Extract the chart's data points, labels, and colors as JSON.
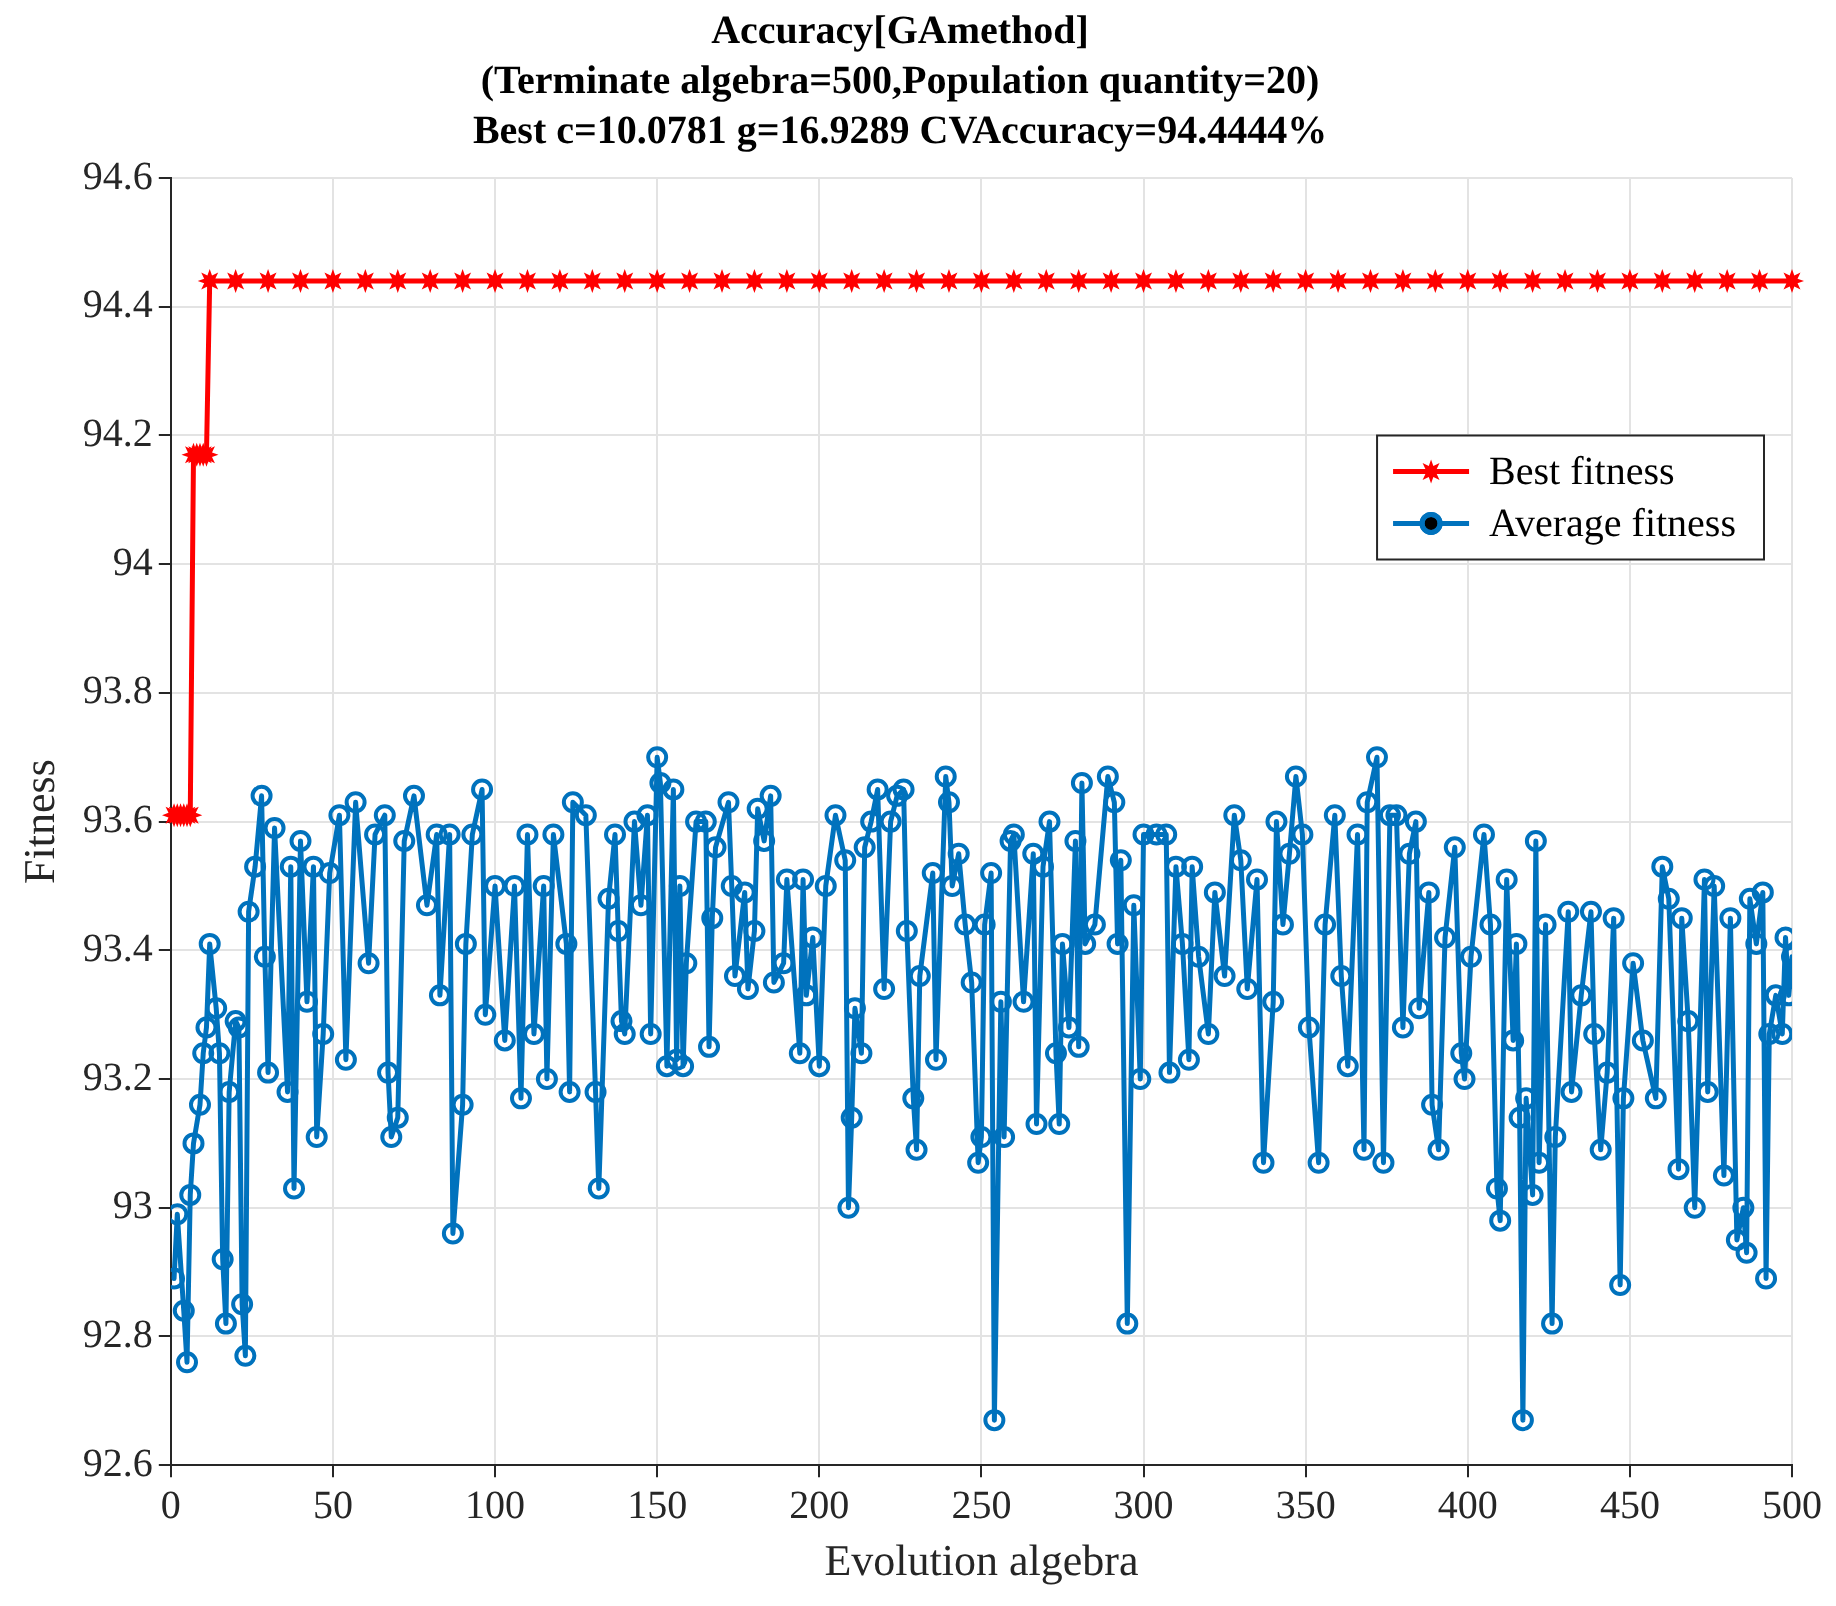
{
  "chart_data": {
    "type": "line",
    "title": "Accuracy[GAmethod]\n(Terminate algebra=500,Population quantity=20)\nBest c=10.0781 g=16.9289 CVAccuracy=94.4444%",
    "xlabel": "Evolution algebra",
    "ylabel": "Fitness",
    "xlim": [
      0,
      500
    ],
    "xticks": [
      0,
      50,
      100,
      150,
      200,
      250,
      300,
      350,
      400,
      450,
      500
    ],
    "ylim": [
      92.6,
      94.6
    ],
    "yticks": [
      92.6,
      92.8,
      93,
      93.2,
      93.4,
      93.6,
      93.8,
      94,
      94.2,
      94.4,
      94.6
    ],
    "grid": true,
    "legend": "top right",
    "line_style": "solid",
    "series": [
      {
        "name": "Best fitness",
        "color": "#ff0000",
        "marker": "star",
        "x": [
          1,
          2,
          3,
          4,
          5,
          6,
          7,
          8,
          9,
          10,
          11,
          12,
          20,
          30,
          40,
          50,
          60,
          70,
          80,
          90,
          100,
          110,
          120,
          130,
          140,
          150,
          160,
          170,
          180,
          190,
          200,
          210,
          220,
          230,
          240,
          250,
          260,
          270,
          280,
          290,
          300,
          310,
          320,
          330,
          340,
          350,
          360,
          370,
          380,
          390,
          400,
          410,
          420,
          430,
          440,
          450,
          460,
          470,
          480,
          490,
          500
        ],
        "values": [
          93.61,
          93.61,
          93.61,
          93.61,
          93.61,
          93.61,
          94.17,
          94.17,
          94.17,
          94.17,
          94.17,
          94.44,
          94.44,
          94.44,
          94.44,
          94.44,
          94.44,
          94.44,
          94.44,
          94.44,
          94.44,
          94.44,
          94.44,
          94.44,
          94.44,
          94.44,
          94.44,
          94.44,
          94.44,
          94.44,
          94.44,
          94.44,
          94.44,
          94.44,
          94.44,
          94.44,
          94.44,
          94.44,
          94.44,
          94.44,
          94.44,
          94.44,
          94.44,
          94.44,
          94.44,
          94.44,
          94.44,
          94.44,
          94.44,
          94.44,
          94.44,
          94.44,
          94.44,
          94.44,
          94.44,
          94.44,
          94.44,
          94.44,
          94.44,
          94.44,
          94.44
        ]
      },
      {
        "name": "Average fitness",
        "color": "#0072bd",
        "marker": "circle",
        "x": [
          1,
          2,
          4,
          5,
          6,
          7,
          9,
          10,
          11,
          12,
          14,
          15,
          16,
          17,
          18,
          20,
          21,
          22,
          23,
          24,
          26,
          28,
          29,
          30,
          32,
          36,
          37,
          38,
          40,
          42,
          44,
          45,
          47,
          49,
          52,
          54,
          57,
          61,
          63,
          66,
          67,
          68,
          70,
          72,
          75,
          79,
          82,
          83,
          86,
          87,
          90,
          91,
          93,
          96,
          97,
          100,
          103,
          106,
          108,
          110,
          112,
          115,
          116,
          118,
          122,
          123,
          124,
          128,
          131,
          132,
          135,
          137,
          138,
          139,
          140,
          143,
          145,
          147,
          148,
          150,
          151,
          153,
          155,
          156,
          157,
          158,
          159,
          162,
          165,
          166,
          167,
          168,
          172,
          173,
          174,
          177,
          178,
          180,
          181,
          183,
          185,
          186,
          189,
          190,
          194,
          195,
          196,
          198,
          200,
          202,
          205,
          208,
          209,
          210,
          211,
          213,
          214,
          216,
          218,
          220,
          222,
          224,
          226,
          227,
          229,
          230,
          231,
          235,
          236,
          239,
          240,
          241,
          243,
          245,
          247,
          249,
          250,
          251,
          253,
          254,
          256,
          257,
          259,
          260,
          263,
          266,
          267,
          269,
          271,
          273,
          274,
          275,
          277,
          279,
          280,
          281,
          282,
          285,
          289,
          291,
          292,
          293,
          295,
          297,
          299,
          300,
          304,
          307,
          308,
          310,
          312,
          314,
          315,
          317,
          320,
          322,
          325,
          328,
          330,
          332,
          335,
          337,
          340,
          341,
          343,
          345,
          347,
          349,
          351,
          354,
          356,
          359,
          361,
          363,
          366,
          368,
          369,
          372,
          374,
          376,
          378,
          380,
          382,
          384,
          385,
          388,
          389,
          391,
          393,
          396,
          398,
          399,
          401,
          405,
          407,
          409,
          410,
          412,
          414,
          415,
          416,
          417,
          418,
          420,
          421,
          422,
          424,
          426,
          427,
          431,
          432,
          435,
          438,
          439,
          441,
          443,
          445,
          447,
          448,
          451,
          454,
          458,
          460,
          462,
          465,
          466,
          468,
          470,
          473,
          474,
          476,
          479,
          481,
          483,
          485,
          486,
          487,
          489,
          491,
          492,
          493,
          495,
          497,
          498,
          499,
          500
        ],
        "values": [
          92.89,
          92.99,
          92.84,
          92.76,
          93.02,
          93.1,
          93.16,
          93.24,
          93.28,
          93.41,
          93.31,
          93.24,
          92.92,
          92.82,
          93.18,
          93.29,
          93.28,
          92.85,
          92.77,
          93.46,
          93.53,
          93.64,
          93.39,
          93.21,
          93.59,
          93.18,
          93.53,
          93.03,
          93.57,
          93.32,
          93.53,
          93.11,
          93.27,
          93.52,
          93.61,
          93.23,
          93.63,
          93.38,
          93.58,
          93.61,
          93.21,
          93.11,
          93.14,
          93.57,
          93.64,
          93.47,
          93.58,
          93.33,
          93.58,
          92.96,
          93.16,
          93.41,
          93.58,
          93.65,
          93.3,
          93.5,
          93.26,
          93.5,
          93.17,
          93.58,
          93.27,
          93.5,
          93.2,
          93.58,
          93.41,
          93.18,
          93.63,
          93.61,
          93.18,
          93.03,
          93.48,
          93.58,
          93.43,
          93.29,
          93.27,
          93.6,
          93.47,
          93.61,
          93.27,
          93.7,
          93.66,
          93.22,
          93.65,
          93.23,
          93.5,
          93.22,
          93.38,
          93.6,
          93.6,
          93.25,
          93.45,
          93.56,
          93.63,
          93.5,
          93.36,
          93.49,
          93.34,
          93.43,
          93.62,
          93.57,
          93.64,
          93.35,
          93.38,
          93.51,
          93.24,
          93.51,
          93.33,
          93.42,
          93.22,
          93.5,
          93.61,
          93.54,
          93.0,
          93.14,
          93.31,
          93.24,
          93.56,
          93.6,
          93.65,
          93.34,
          93.6,
          93.64,
          93.65,
          93.43,
          93.17,
          93.09,
          93.36,
          93.52,
          93.23,
          93.67,
          93.63,
          93.5,
          93.55,
          93.44,
          93.35,
          93.07,
          93.11,
          93.44,
          93.52,
          92.67,
          93.32,
          93.11,
          93.57,
          93.58,
          93.32,
          93.55,
          93.13,
          93.53,
          93.6,
          93.24,
          93.13,
          93.41,
          93.28,
          93.57,
          93.25,
          93.66,
          93.41,
          93.44,
          93.67,
          93.63,
          93.41,
          93.54,
          92.82,
          93.47,
          93.2,
          93.58,
          93.58,
          93.58,
          93.21,
          93.53,
          93.41,
          93.23,
          93.53,
          93.39,
          93.27,
          93.49,
          93.36,
          93.61,
          93.54,
          93.34,
          93.51,
          93.07,
          93.32,
          93.6,
          93.44,
          93.55,
          93.67,
          93.58,
          93.28,
          93.07,
          93.44,
          93.61,
          93.36,
          93.22,
          93.58,
          93.09,
          93.63,
          93.7,
          93.07,
          93.61,
          93.61,
          93.28,
          93.55,
          93.6,
          93.31,
          93.49,
          93.16,
          93.09,
          93.42,
          93.56,
          93.24,
          93.2,
          93.39,
          93.58,
          93.44,
          93.03,
          92.98,
          93.51,
          93.26,
          93.41,
          93.14,
          92.67,
          93.17,
          93.02,
          93.57,
          93.07,
          93.44,
          92.82,
          93.11,
          93.46,
          93.18,
          93.33,
          93.46,
          93.27,
          93.09,
          93.21,
          93.45,
          92.88,
          93.17,
          93.38,
          93.26,
          93.17,
          93.53,
          93.48,
          93.06,
          93.45,
          93.29,
          93.0,
          93.51,
          93.18,
          93.5,
          93.05,
          93.45,
          92.95,
          93.0,
          92.93,
          93.48,
          93.41,
          93.49,
          92.89,
          93.27,
          93.33,
          93.27,
          93.42,
          93.33,
          93.39
        ]
      }
    ]
  }
}
